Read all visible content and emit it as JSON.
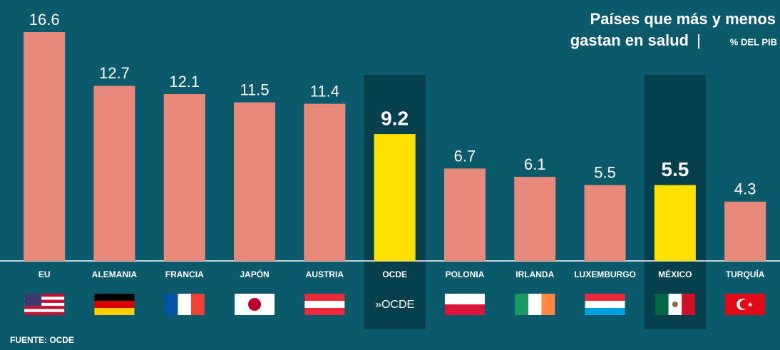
{
  "chart_data": {
    "type": "bar",
    "title_lines": [
      "Países que más y menos",
      "gastan en salud"
    ],
    "unit": "% DEL PIB",
    "source": "FUENTE: OCDE",
    "logo": "»OCDE",
    "categories": [
      "EU",
      "ALEMANIA",
      "FRANCIA",
      "JAPÓN",
      "AUSTRIA",
      "OCDE",
      "POLONIA",
      "IRLANDA",
      "LUXEMBURGO",
      "MÉXICO",
      "TURQUÍA"
    ],
    "values": [
      16.6,
      12.7,
      12.1,
      11.5,
      11.4,
      9.2,
      6.7,
      6.1,
      5.5,
      5.5,
      4.3
    ],
    "color": "#e8897c",
    "highlight_color": "#ffe000",
    "highlight": [
      5,
      9
    ]
  }
}
